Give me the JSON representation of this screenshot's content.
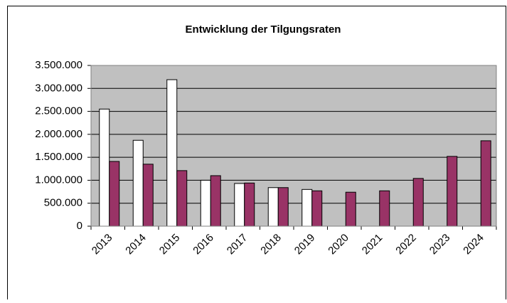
{
  "chart_data": {
    "type": "bar",
    "title": "Entwicklung der Tilgungsraten",
    "categories": [
      "2013",
      "2014",
      "2015",
      "2016",
      "2017",
      "2018",
      "2019",
      "2020",
      "2021",
      "2022",
      "2023",
      "2024"
    ],
    "series": [
      {
        "color": "#ffffff",
        "values": [
          2550000,
          1870000,
          3190000,
          1000000,
          930000,
          840000,
          800000,
          null,
          null,
          null,
          null,
          null
        ]
      },
      {
        "color": "#993366",
        "values": [
          1410000,
          1350000,
          1210000,
          1100000,
          940000,
          840000,
          770000,
          740000,
          770000,
          1040000,
          1520000,
          1860000
        ]
      }
    ],
    "ylim": [
      0,
      3500000
    ],
    "yticks": [
      0,
      {
        "value": 500000,
        "label": "500.000"
      },
      {
        "value": 1000000,
        "label": "1.000.000"
      },
      {
        "value": 1500000,
        "label": "1.500.000"
      },
      {
        "value": 2000000,
        "label": "2.000.000"
      },
      {
        "value": 2500000,
        "label": "2.500.000"
      },
      {
        "value": 3000000,
        "label": "3.000.000"
      },
      {
        "value": 3500000,
        "label": "3.500.000"
      }
    ],
    "grid": true,
    "plot_background": "#c0c0c0"
  }
}
